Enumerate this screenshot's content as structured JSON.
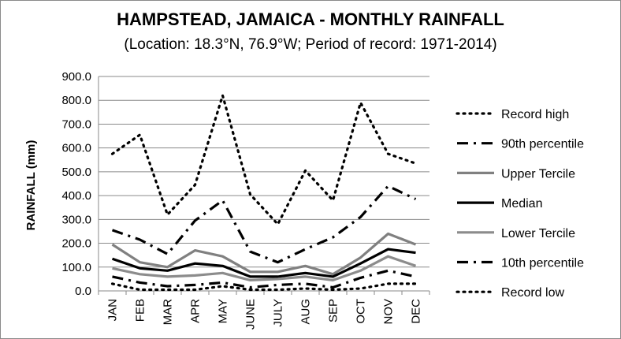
{
  "chart_data": {
    "type": "line",
    "title": "HAMPSTEAD, JAMAICA - MONTHLY RAINFALL",
    "subtitle": "(Location: 18.3°N, 76.9°W; Period of record: 1971-2014)",
    "ylabel": "RAINFALL (mm)",
    "xlabel": "",
    "ylim": [
      0,
      900
    ],
    "yticks": [
      "0.0",
      "100.0",
      "200.0",
      "300.0",
      "400.0",
      "500.0",
      "600.0",
      "700.0",
      "800.0",
      "900.0"
    ],
    "categories": [
      "JAN",
      "FEB",
      "MAR",
      "APR",
      "MAY",
      "JUNE",
      "JULY",
      "AUG",
      "SEP",
      "OCT",
      "NOV",
      "DEC"
    ],
    "grid": true,
    "legend_position": "right",
    "series": [
      {
        "name": "Record high",
        "style": "dotted",
        "color": "#000000",
        "values": [
          575,
          655,
          320,
          445,
          820,
          405,
          280,
          505,
          380,
          790,
          575,
          535
        ]
      },
      {
        "name": "90th percentile",
        "style": "dashdot",
        "color": "#000000",
        "values": [
          255,
          215,
          155,
          295,
          380,
          165,
          120,
          175,
          225,
          310,
          440,
          385
        ]
      },
      {
        "name": "Upper Tercile",
        "style": "solid",
        "color": "#808080",
        "values": [
          195,
          120,
          100,
          170,
          145,
          80,
          80,
          105,
          70,
          140,
          240,
          195
        ]
      },
      {
        "name": "Median",
        "style": "solid",
        "color": "#000000",
        "values": [
          135,
          95,
          85,
          115,
          105,
          60,
          60,
          75,
          60,
          115,
          175,
          160
        ]
      },
      {
        "name": "Lower Tercile",
        "style": "solid",
        "color": "#8c8c8c",
        "values": [
          95,
          70,
          60,
          65,
          75,
          45,
          50,
          60,
          45,
          85,
          145,
          105
        ]
      },
      {
        "name": "10th percentile",
        "style": "dashdot",
        "color": "#000000",
        "values": [
          60,
          35,
          20,
          25,
          35,
          15,
          25,
          30,
          15,
          55,
          85,
          60
        ]
      },
      {
        "name": "Record low",
        "style": "dotted",
        "color": "#000000",
        "values": [
          30,
          5,
          5,
          5,
          20,
          5,
          5,
          10,
          5,
          10,
          30,
          30
        ]
      }
    ]
  }
}
